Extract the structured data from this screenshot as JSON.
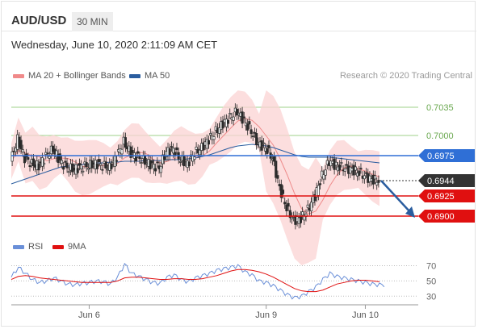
{
  "header": {
    "symbol": "AUD/USD",
    "timeframe": "30 MIN"
  },
  "datetime": "Wednesday, June 10, 2020 2:11:09 AM CET",
  "legend": {
    "items": [
      {
        "label": "MA 20 + Bollinger Bands",
        "color": "#f08a8a"
      },
      {
        "label": "MA 50",
        "color": "#2a5d9f"
      }
    ],
    "research": "Research © 2020 Trading Central"
  },
  "rsi_legend": {
    "items": [
      {
        "label": "RSI",
        "color": "#6a8fd8"
      },
      {
        "label": "9MA",
        "color": "#e01010"
      }
    ]
  },
  "chart_data": {
    "type": "candlestick",
    "y_ticks": [
      "0.7035",
      "0.7000"
    ],
    "ylim": [
      0.6885,
      0.705
    ],
    "x_ticks": [
      "Jun 6",
      "Jun 9",
      "Jun 10"
    ],
    "levels": [
      {
        "label": "0.6975",
        "value": 0.6975,
        "color": "#2f6fd6",
        "kind": "resistance"
      },
      {
        "label": "0.6944",
        "value": 0.6944,
        "color": "#333333",
        "kind": "current"
      },
      {
        "label": "0.6925",
        "value": 0.6925,
        "color": "#e01010",
        "kind": "support"
      },
      {
        "label": "0.6900",
        "value": 0.69,
        "color": "#e01010",
        "kind": "support"
      }
    ],
    "price_path": [
      0.6968,
      0.6995,
      0.6972,
      0.6965,
      0.6962,
      0.6975,
      0.6983,
      0.6968,
      0.696,
      0.6958,
      0.6961,
      0.6963,
      0.6965,
      0.6963,
      0.696,
      0.6974,
      0.6992,
      0.6978,
      0.6973,
      0.6968,
      0.6963,
      0.696,
      0.698,
      0.6983,
      0.697,
      0.6965,
      0.6978,
      0.6985,
      0.6995,
      0.7005,
      0.7015,
      0.7022,
      0.703,
      0.7018,
      0.7005,
      0.699,
      0.6985,
      0.6972,
      0.6935,
      0.691,
      0.6895,
      0.6897,
      0.6908,
      0.6925,
      0.695,
      0.6968,
      0.6962,
      0.696,
      0.6958,
      0.6955,
      0.695,
      0.6945,
      0.6944
    ],
    "ma50": [
      0.694,
      0.6943,
      0.6946,
      0.6949,
      0.6952,
      0.6955,
      0.6958,
      0.6961,
      0.6962,
      0.6963,
      0.6964,
      0.6965,
      0.6966,
      0.6966,
      0.6967,
      0.6967,
      0.6968,
      0.6968,
      0.6968,
      0.6969,
      0.6969,
      0.6969,
      0.697,
      0.697,
      0.697,
      0.6971,
      0.6972,
      0.6974,
      0.6976,
      0.6979,
      0.6982,
      0.6985,
      0.6987,
      0.6988,
      0.6989,
      0.6988,
      0.6987,
      0.6985,
      0.6982,
      0.6979,
      0.6976,
      0.6974,
      0.6973,
      0.6973,
      0.6973,
      0.6973,
      0.6972,
      0.6971,
      0.697,
      0.6969,
      0.6968,
      0.6967,
      0.6966
    ],
    "forecast": {
      "from": 0.6944,
      "to": 0.69,
      "color": "#2a5d9f"
    },
    "rsi": {
      "y_ticks": [
        "70",
        "50",
        "30"
      ],
      "ylim": [
        25,
        78
      ],
      "rsi": [
        55,
        68,
        60,
        52,
        48,
        50,
        54,
        50,
        46,
        45,
        47,
        48,
        50,
        49,
        46,
        55,
        72,
        60,
        56,
        52,
        48,
        47,
        55,
        58,
        52,
        49,
        54,
        57,
        60,
        64,
        66,
        68,
        70,
        62,
        58,
        50,
        48,
        44,
        38,
        32,
        28,
        30,
        36,
        42,
        52,
        60,
        56,
        54,
        52,
        50,
        48,
        46,
        45
      ],
      "ma9": [
        52,
        56,
        57,
        56,
        54,
        53,
        52,
        51,
        50,
        49,
        48,
        48,
        48,
        48,
        48,
        50,
        54,
        55,
        55,
        54,
        53,
        52,
        52,
        53,
        53,
        52,
        52,
        53,
        55,
        57,
        60,
        63,
        65,
        65,
        64,
        62,
        59,
        55,
        50,
        45,
        40,
        37,
        36,
        36,
        38,
        42,
        46,
        48,
        50,
        51,
        51,
        50,
        49
      ]
    }
  }
}
